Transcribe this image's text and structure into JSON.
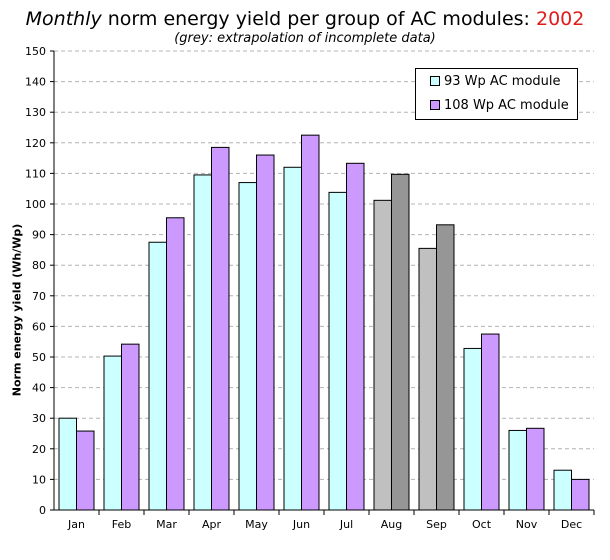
{
  "title": {
    "italic_part": "Monthly",
    "main_part": " norm energy yield per group of AC modules: ",
    "year": "2002",
    "year_color": "#e31a1a"
  },
  "subtitle": "(grey: extrapolation of incomplete data)",
  "chart_data": {
    "type": "bar",
    "title": "Monthly norm energy yield per group of AC modules: 2002",
    "subtitle": "(grey: extrapolation of incomplete data)",
    "categories": [
      "Jan",
      "Feb",
      "Mar",
      "Apr",
      "May",
      "Jun",
      "Jul",
      "Aug",
      "Sep",
      "Oct",
      "Nov",
      "Dec"
    ],
    "series": [
      {
        "name": "93 Wp AC module",
        "values": [
          30,
          50.3,
          87.5,
          109.5,
          107,
          112,
          103.8,
          101.2,
          85.5,
          52.8,
          26,
          13
        ],
        "color": "#ccffff"
      },
      {
        "name": "108 Wp AC module",
        "values": [
          25.8,
          54.2,
          95.5,
          118.5,
          116,
          122.5,
          113.3,
          109.7,
          93.2,
          57.5,
          26.7,
          10
        ],
        "color": "#cc99ff"
      }
    ],
    "extrapolated_categories": [
      "Aug",
      "Sep"
    ],
    "extrapolated_colors": [
      "#c0c0c0",
      "#969696"
    ],
    "xlabel": "",
    "ylabel": "Norm energy yield (Wh/Wp)",
    "ylim": [
      0,
      150
    ],
    "yticks": [
      0,
      10,
      20,
      30,
      40,
      50,
      60,
      70,
      80,
      90,
      100,
      110,
      120,
      130,
      140,
      150
    ],
    "grid": "horizontal dashed",
    "legend_position": "top-right"
  }
}
